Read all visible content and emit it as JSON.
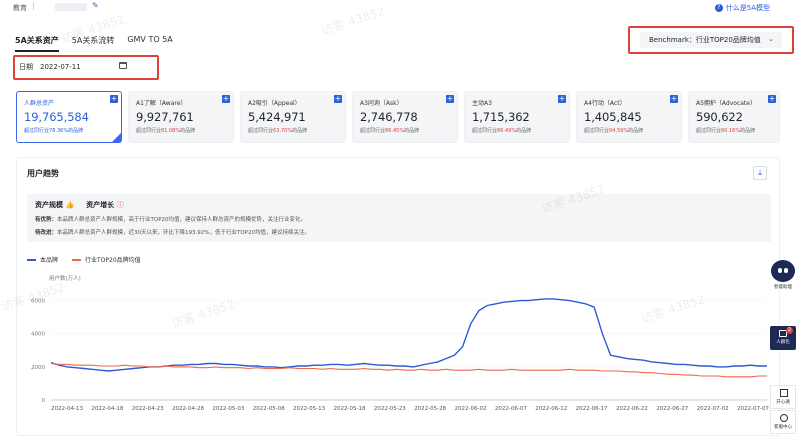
{
  "topbar": {
    "crumb": "教育",
    "help": "什么是5A模型"
  },
  "tabs": [
    {
      "label": "5A关系资产",
      "active": true
    },
    {
      "label": "5A关系流转",
      "active": false
    },
    {
      "label": "GMV TO 5A",
      "active": false
    }
  ],
  "benchmark": {
    "label": "Benchmark：行业TOP20品牌均值"
  },
  "date": {
    "label": "日期",
    "value": "2022-07-11"
  },
  "cards": [
    {
      "title": "人群总资产",
      "value": "19,765,584",
      "sub_pre": "超过同行业",
      "pct": "78.36%",
      "sub_post": "的品牌",
      "active": true
    },
    {
      "title": "A1了解（Aware）",
      "value": "9,927,761",
      "sub_pre": "超过同行业",
      "pct": "81.08%",
      "sub_post": "的品牌",
      "active": false
    },
    {
      "title": "A2吸引（Appeal）",
      "value": "5,424,971",
      "sub_pre": "超过同行业",
      "pct": "63.70%",
      "sub_post": "的品牌",
      "active": false
    },
    {
      "title": "A3问询（Ask）",
      "value": "2,746,778",
      "sub_pre": "超过同行业",
      "pct": "86.45%",
      "sub_post": "的品牌",
      "active": false
    },
    {
      "title": "主动A3",
      "value": "1,715,362",
      "sub_pre": "超过同行业",
      "pct": "86.49%",
      "sub_post": "的品牌",
      "active": false
    },
    {
      "title": "A4行动（Act）",
      "value": "1,405,845",
      "sub_pre": "超过同行业",
      "pct": "94.59%",
      "sub_post": "的品牌",
      "active": false
    },
    {
      "title": "A5拥护（Advocate）",
      "value": "590,622",
      "sub_pre": "超过同行业",
      "pct": "80.16%",
      "sub_post": "的品牌",
      "active": false
    }
  ],
  "trend": {
    "title": "用户趋势",
    "head_scale": "资产规模",
    "head_growth": "资产增长",
    "line1_label": "有优势：",
    "line1": "本品牌人群总资产人群规模，高于行业TOP20均值，建议保持人群总资产的规模优势，关注行业变化。",
    "line2_label": "待改进：",
    "line2": "本品牌人群总资产人群规模，近30天以来，环比下降193.92%，低于行业TOP20均值，建议持续关注。"
  },
  "side": {
    "assistant": "智能助理",
    "crowd": "人群包",
    "crowd_badge": "2",
    "grid": "开心通",
    "service": "客服中心"
  },
  "watermarks": [
    "访客 43852",
    "访客 43852",
    "访客 43852",
    "访客 43852",
    "访客 43852",
    "访客 43852"
  ],
  "colors": {
    "accent": "#2b5fd9",
    "brand_line": "#2d5bd6",
    "bench_line": "#ef6a4c",
    "alert": "#e0423a"
  },
  "chart_data": {
    "type": "line",
    "ylabel": "用户数(万人)",
    "ylim": [
      0,
      7000
    ],
    "yticks": [
      0,
      2000,
      4000,
      6000
    ],
    "xticks": [
      "2022-04-13",
      "2022-04-18",
      "2022-04-23",
      "2022-04-28",
      "2022-05-03",
      "2022-05-08",
      "2022-05-13",
      "2022-05-18",
      "2022-05-23",
      "2022-05-28",
      "2022-06-02",
      "2022-06-07",
      "2022-06-12",
      "2022-06-17",
      "2022-06-22",
      "2022-06-27",
      "2022-07-02",
      "2022-07-07"
    ],
    "series": [
      {
        "name": "本品牌",
        "values": [
          2250,
          2100,
          2000,
          1950,
          1900,
          1850,
          1800,
          1750,
          1800,
          1850,
          1900,
          1950,
          2000,
          2000,
          2050,
          2100,
          2100,
          2150,
          2150,
          2200,
          2200,
          2150,
          2150,
          2100,
          2050,
          2050,
          2000,
          2000,
          1950,
          2000,
          2050,
          2050,
          2100,
          2100,
          2150,
          2150,
          2100,
          2150,
          2200,
          2150,
          2100,
          2100,
          2050,
          2050,
          2000,
          2100,
          2200,
          2300,
          2500,
          2700,
          3200,
          4600,
          5400,
          5700,
          5800,
          5900,
          5950,
          6000,
          6000,
          6050,
          6100,
          6100,
          6050,
          6000,
          5900,
          5800,
          5600,
          4000,
          2700,
          2600,
          2500,
          2450,
          2400,
          2300,
          2250,
          2200,
          2150,
          2150,
          2100,
          2050,
          2050,
          2000,
          2000,
          2050,
          2050,
          2100,
          2050,
          2050
        ]
      },
      {
        "name": "行业TOP20品牌均值",
        "values": [
          2200,
          2150,
          2150,
          2100,
          2100,
          2100,
          2050,
          2050,
          2050,
          2100,
          2050,
          2050,
          2000,
          2000,
          2050,
          2000,
          2000,
          2000,
          1950,
          1950,
          2000,
          1950,
          1950,
          1950,
          1900,
          1950,
          1900,
          1900,
          1900,
          1950,
          1900,
          1900,
          1900,
          1850,
          1900,
          1850,
          1850,
          1850,
          1900,
          1850,
          1850,
          1800,
          1850,
          1800,
          1800,
          1850,
          1800,
          1800,
          1850,
          1800,
          1800,
          1800,
          1850,
          1800,
          1800,
          1800,
          1850,
          1800,
          1800,
          1800,
          1800,
          1800,
          1800,
          1850,
          1800,
          1800,
          1800,
          1750,
          1750,
          1750,
          1700,
          1700,
          1650,
          1650,
          1600,
          1550,
          1550,
          1500,
          1500,
          1450,
          1450,
          1450,
          1400,
          1400,
          1400,
          1400,
          1450,
          1450
        ]
      }
    ]
  }
}
